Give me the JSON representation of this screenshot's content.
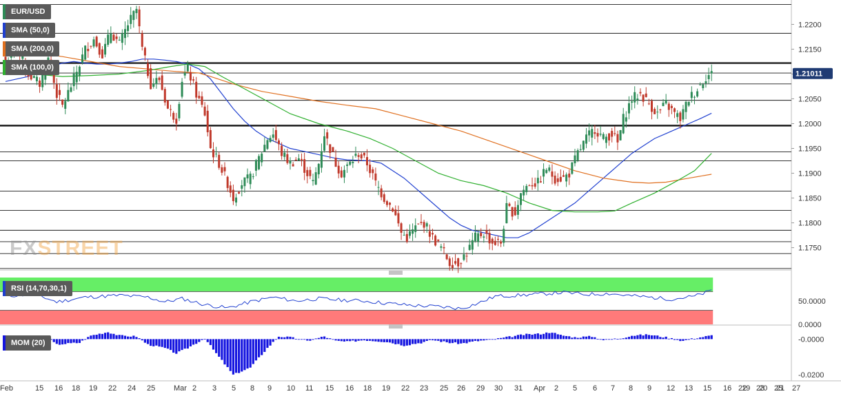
{
  "chart_data": [
    {
      "type": "candlestick",
      "symbol": "EUR/USD",
      "last_price_label": "1.21011",
      "ylim": [
        1.1705,
        1.2245
      ],
      "y_ticks": [
        "1.2200",
        "1.2150",
        "1.2100",
        "1.2050",
        "1.2000",
        "1.1950",
        "1.1900",
        "1.1850",
        "1.1800",
        "1.1750"
      ],
      "x_labels": [
        "Feb",
        "15",
        "16",
        "18",
        "19",
        "22",
        "24",
        "25",
        "Mar",
        "2",
        "3",
        "5",
        "8",
        "9",
        "10",
        "11",
        "15",
        "16",
        "18",
        "19",
        "22",
        "23",
        "25",
        "26",
        "29",
        "30",
        "31",
        "Apr",
        "2",
        "5",
        "6",
        "7",
        "8",
        "9",
        "12",
        "13",
        "15",
        "16",
        "19",
        "20",
        "21",
        "22",
        "23",
        "25",
        "27"
      ],
      "horizontal_levels": [
        1.224,
        1.2182,
        1.2122,
        1.2102,
        1.208,
        1.2047,
        1.1996,
        1.1943,
        1.1925,
        1.1864,
        1.1825,
        1.1785,
        1.1762,
        1.1738,
        1.1708
      ],
      "bold_levels": [
        1.2122,
        1.1996
      ],
      "price_anchors": [
        [
          0,
          1.2125
        ],
        [
          4,
          1.215
        ],
        [
          8,
          1.21
        ],
        [
          12,
          1.208
        ],
        [
          15,
          1.213
        ],
        [
          18,
          1.206
        ],
        [
          20,
          1.2035
        ],
        [
          24,
          1.209
        ],
        [
          28,
          1.215
        ],
        [
          31,
          1.217
        ],
        [
          34,
          1.214
        ],
        [
          37,
          1.2185
        ],
        [
          40,
          1.216
        ],
        [
          43,
          1.22
        ],
        [
          46,
          1.223
        ],
        [
          48,
          1.215
        ],
        [
          51,
          1.208
        ],
        [
          54,
          1.209
        ],
        [
          57,
          1.203
        ],
        [
          60,
          1.201
        ],
        [
          62,
          1.209
        ],
        [
          64,
          1.211
        ],
        [
          67,
          1.206
        ],
        [
          70,
          1.202
        ],
        [
          72,
          1.195
        ],
        [
          75,
          1.192
        ],
        [
          78,
          1.188
        ],
        [
          80,
          1.185
        ],
        [
          83,
          1.188
        ],
        [
          86,
          1.189
        ],
        [
          89,
          1.193
        ],
        [
          92,
          1.197
        ],
        [
          94,
          1.198
        ],
        [
          97,
          1.194
        ],
        [
          100,
          1.192
        ],
        [
          103,
          1.193
        ],
        [
          106,
          1.19
        ],
        [
          108,
          1.188
        ],
        [
          110,
          1.192
        ],
        [
          112,
          1.198
        ],
        [
          114,
          1.195
        ],
        [
          116,
          1.192
        ],
        [
          118,
          1.19
        ],
        [
          121,
          1.192
        ],
        [
          124,
          1.194
        ],
        [
          127,
          1.192
        ],
        [
          130,
          1.188
        ],
        [
          133,
          1.185
        ],
        [
          136,
          1.183
        ],
        [
          139,
          1.178
        ],
        [
          141,
          1.177
        ],
        [
          144,
          1.179
        ],
        [
          147,
          1.18
        ],
        [
          150,
          1.177
        ],
        [
          153,
          1.175
        ],
        [
          156,
          1.172
        ],
        [
          159,
          1.172
        ],
        [
          162,
          1.174
        ],
        [
          165,
          1.177
        ],
        [
          168,
          1.178
        ],
        [
          171,
          1.176
        ],
        [
          174,
          1.176
        ],
        [
          176,
          1.183
        ],
        [
          179,
          1.182
        ],
        [
          181,
          1.186
        ],
        [
          184,
          1.188
        ],
        [
          187,
          1.188
        ],
        [
          190,
          1.191
        ],
        [
          193,
          1.189
        ],
        [
          196,
          1.189
        ],
        [
          198,
          1.19
        ],
        [
          201,
          1.194
        ],
        [
          204,
          1.197
        ],
        [
          207,
          1.199
        ],
        [
          210,
          1.197
        ],
        [
          213,
          1.198
        ],
        [
          215,
          1.196
        ],
        [
          217,
          1.201
        ],
        [
          220,
          1.205
        ],
        [
          223,
          1.206
        ],
        [
          226,
          1.204
        ],
        [
          229,
          1.202
        ],
        [
          232,
          1.204
        ],
        [
          235,
          1.202
        ],
        [
          237,
          1.201
        ],
        [
          240,
          1.205
        ],
        [
          243,
          1.207
        ],
        [
          246,
          1.2095
        ],
        [
          248,
          1.21
        ]
      ],
      "series": [
        {
          "name": "SMA (50,0)",
          "color": "#2040d0",
          "points": [
            [
              0,
              1.2085
            ],
            [
              4,
              1.209
            ],
            [
              8,
              1.2095
            ],
            [
              12,
              1.2105
            ],
            [
              16,
              1.2115
            ],
            [
              20,
              1.2122
            ],
            [
              24,
              1.2125
            ],
            [
              28,
              1.2122
            ],
            [
              32,
              1.212
            ],
            [
              36,
              1.212
            ],
            [
              40,
              1.2122
            ],
            [
              44,
              1.2125
            ],
            [
              48,
              1.213
            ],
            [
              52,
              1.213
            ],
            [
              56,
              1.2128
            ],
            [
              60,
              1.2125
            ],
            [
              64,
              1.212
            ],
            [
              68,
              1.211
            ],
            [
              72,
              1.209
            ],
            [
              76,
              1.206
            ],
            [
              80,
              1.203
            ],
            [
              84,
              1.2005
            ],
            [
              88,
              1.1985
            ],
            [
              92,
              1.197
            ],
            [
              96,
              1.196
            ],
            [
              100,
              1.195
            ],
            [
              104,
              1.1945
            ],
            [
              108,
              1.194
            ],
            [
              112,
              1.1935
            ],
            [
              116,
              1.193
            ],
            [
              120,
              1.1927
            ],
            [
              124,
              1.1926
            ],
            [
              128,
              1.1925
            ],
            [
              132,
              1.192
            ],
            [
              136,
              1.1905
            ],
            [
              140,
              1.189
            ],
            [
              144,
              1.187
            ],
            [
              148,
              1.185
            ],
            [
              152,
              1.183
            ],
            [
              156,
              1.181
            ],
            [
              160,
              1.1795
            ],
            [
              164,
              1.1785
            ],
            [
              168,
              1.178
            ],
            [
              172,
              1.1775
            ],
            [
              176,
              1.177
            ],
            [
              180,
              1.177
            ],
            [
              184,
              1.178
            ],
            [
              188,
              1.1795
            ],
            [
              192,
              1.181
            ],
            [
              196,
              1.1825
            ],
            [
              200,
              1.184
            ],
            [
              204,
              1.186
            ],
            [
              208,
              1.188
            ],
            [
              212,
              1.19
            ],
            [
              216,
              1.192
            ],
            [
              220,
              1.194
            ],
            [
              224,
              1.1955
            ],
            [
              228,
              1.197
            ],
            [
              232,
              1.198
            ],
            [
              236,
              1.199
            ],
            [
              240,
              1.2
            ],
            [
              244,
              1.201
            ],
            [
              248,
              1.2021
            ]
          ]
        },
        {
          "name": "SMA (200,0)",
          "color": "#e07020",
          "points": [
            [
              0,
              1.215
            ],
            [
              10,
              1.2143
            ],
            [
              20,
              1.2135
            ],
            [
              30,
              1.2125
            ],
            [
              40,
              1.2115
            ],
            [
              50,
              1.211
            ],
            [
              60,
              1.2105
            ],
            [
              68,
              1.2102
            ],
            [
              72,
              1.2095
            ],
            [
              80,
              1.208
            ],
            [
              90,
              1.2065
            ],
            [
              100,
              1.2055
            ],
            [
              110,
              1.2045
            ],
            [
              120,
              1.2037
            ],
            [
              130,
              1.203
            ],
            [
              140,
              1.2015
            ],
            [
              150,
              1.2
            ],
            [
              160,
              1.1985
            ],
            [
              170,
              1.1965
            ],
            [
              180,
              1.1945
            ],
            [
              190,
              1.1925
            ],
            [
              200,
              1.1905
            ],
            [
              210,
              1.189
            ],
            [
              220,
              1.1882
            ],
            [
              226,
              1.188
            ],
            [
              232,
              1.1882
            ],
            [
              240,
              1.189
            ],
            [
              248,
              1.1898
            ]
          ]
        },
        {
          "name": "SMA (100,0)",
          "color": "#30b030",
          "points": [
            [
              0,
              1.2105
            ],
            [
              10,
              1.21
            ],
            [
              20,
              1.2095
            ],
            [
              30,
              1.2097
            ],
            [
              40,
              1.21
            ],
            [
              50,
              1.2107
            ],
            [
              58,
              1.2115
            ],
            [
              64,
              1.212
            ],
            [
              70,
              1.2115
            ],
            [
              76,
              1.2095
            ],
            [
              84,
              1.207
            ],
            [
              92,
              1.2045
            ],
            [
              100,
              1.202
            ],
            [
              110,
              1.2
            ],
            [
              120,
              1.1985
            ],
            [
              128,
              1.197
            ],
            [
              136,
              1.195
            ],
            [
              144,
              1.1925
            ],
            [
              152,
              1.19
            ],
            [
              160,
              1.1885
            ],
            [
              168,
              1.1875
            ],
            [
              176,
              1.186
            ],
            [
              184,
              1.184
            ],
            [
              192,
              1.1825
            ],
            [
              200,
              1.1822
            ],
            [
              208,
              1.1822
            ],
            [
              214,
              1.1824
            ],
            [
              220,
              1.184
            ],
            [
              228,
              1.186
            ],
            [
              236,
              1.1885
            ],
            [
              242,
              1.1905
            ],
            [
              248,
              1.194
            ]
          ]
        }
      ]
    },
    {
      "type": "line",
      "name": "RSI (14,70,30,1)",
      "ylim": [
        0,
        100
      ],
      "y_ticks": [
        "50.0000",
        "0.0000"
      ],
      "overbought": 70,
      "oversold": 30,
      "anchors": [
        [
          0,
          60
        ],
        [
          10,
          65
        ],
        [
          18,
          48
        ],
        [
          28,
          58
        ],
        [
          40,
          62
        ],
        [
          50,
          58
        ],
        [
          56,
          48
        ],
        [
          62,
          55
        ],
        [
          70,
          42
        ],
        [
          78,
          35
        ],
        [
          86,
          48
        ],
        [
          94,
          58
        ],
        [
          102,
          50
        ],
        [
          110,
          55
        ],
        [
          118,
          52
        ],
        [
          126,
          50
        ],
        [
          134,
          45
        ],
        [
          144,
          40
        ],
        [
          152,
          38
        ],
        [
          160,
          34
        ],
        [
          166,
          45
        ],
        [
          172,
          60
        ],
        [
          180,
          62
        ],
        [
          188,
          65
        ],
        [
          196,
          68
        ],
        [
          204,
          64
        ],
        [
          212,
          66
        ],
        [
          218,
          62
        ],
        [
          226,
          58
        ],
        [
          234,
          54
        ],
        [
          242,
          60
        ],
        [
          248,
          72
        ]
      ]
    },
    {
      "type": "bar",
      "name": "MOM (20)",
      "ylim": [
        -0.0215,
        0.0048
      ],
      "y_ticks": [
        "-0.0000",
        "-0.0200"
      ],
      "anchors": [
        [
          0,
          0.002
        ],
        [
          6,
          0.001
        ],
        [
          14,
          0.0015
        ],
        [
          18,
          -0.003
        ],
        [
          26,
          -0.002
        ],
        [
          30,
          0.002
        ],
        [
          36,
          0.004
        ],
        [
          40,
          0.002
        ],
        [
          46,
          0.0015
        ],
        [
          50,
          -0.003
        ],
        [
          56,
          -0.005
        ],
        [
          60,
          -0.008
        ],
        [
          64,
          -0.005
        ],
        [
          70,
          0.0005
        ],
        [
          74,
          -0.008
        ],
        [
          80,
          -0.02
        ],
        [
          86,
          -0.016
        ],
        [
          92,
          -0.005
        ],
        [
          96,
          0.0015
        ],
        [
          100,
          0.001
        ],
        [
          106,
          -0.001
        ],
        [
          112,
          0.0015
        ],
        [
          116,
          -0.001
        ],
        [
          120,
          -0.0015
        ],
        [
          126,
          -0.0005
        ],
        [
          130,
          -0.001
        ],
        [
          134,
          -0.0015
        ],
        [
          140,
          -0.0035
        ],
        [
          146,
          -0.002
        ],
        [
          150,
          -0.0005
        ],
        [
          156,
          -0.002
        ],
        [
          160,
          -0.0025
        ],
        [
          166,
          -0.001
        ],
        [
          170,
          -0.0005
        ],
        [
          176,
          0.001
        ],
        [
          182,
          0.0025
        ],
        [
          188,
          0.003
        ],
        [
          192,
          0.004
        ],
        [
          194,
          0.0025
        ],
        [
          200,
          0.001
        ],
        [
          206,
          0.0015
        ],
        [
          210,
          -0.0005
        ],
        [
          216,
          0.0005
        ],
        [
          220,
          0.002
        ],
        [
          226,
          0.0025
        ],
        [
          232,
          0.001
        ],
        [
          238,
          -0.001
        ],
        [
          242,
          0.0005
        ],
        [
          248,
          0.002
        ]
      ]
    }
  ],
  "legend": {
    "symbol": "EUR/USD",
    "sma50": "SMA (50,0)",
    "sma200": "SMA (200,0)",
    "sma100": "SMA (100,0)",
    "rsi": "RSI (14,70,30,1)",
    "mom": "MOM (20)"
  },
  "watermark": {
    "part1": "FX",
    "part2": "STREET"
  },
  "colors": {
    "candle_up": "#2e8b57",
    "candle_down": "#c0392b",
    "rsi_overbought_fill": "#66ee66",
    "rsi_oversold_fill": "#ff7a7a",
    "mom_bar": "#1515e0",
    "legend_bg": "#5a5a5a",
    "price_tag_bg": "#1f3b73"
  }
}
